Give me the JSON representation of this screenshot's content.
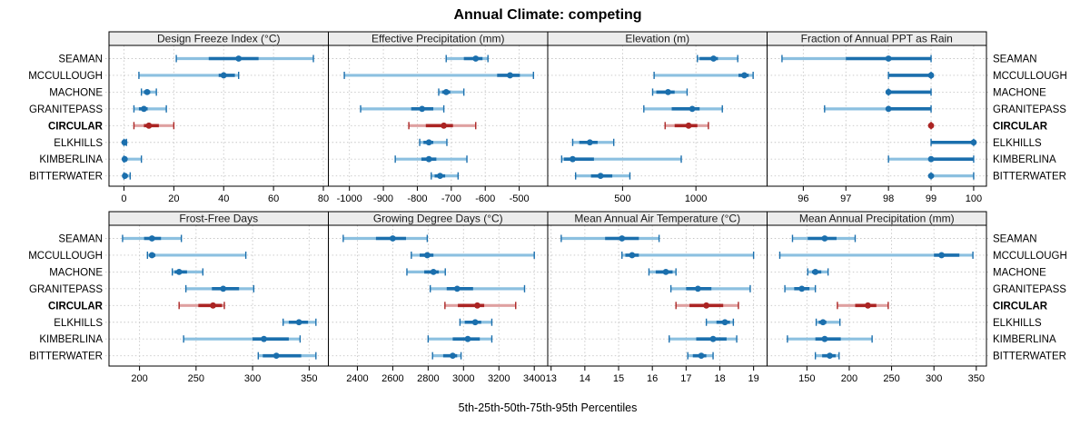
{
  "colors": {
    "blue_dark": "#1b6fad",
    "blue_band": "#8cc0e0",
    "red_dark": "#ab2423",
    "red_band": "#dfa1a1",
    "strip_bg": "#ececec",
    "grid": "#c6c6c6",
    "border": "#000000",
    "text": "#000000"
  },
  "chart_data": {
    "type": "dot-range percentile plot (2x4 lattice)",
    "title": "Annual Climate: competing",
    "caption": "5th-25th-50th-75th-95th Percentiles",
    "percentile_order": [
      "5th",
      "25th",
      "50th",
      "75th",
      "95th"
    ],
    "sites": [
      "SEAMAN",
      "MCCULLOUGH",
      "MACHONE",
      "GRANITEPASS",
      "CIRCULAR",
      "ELKHILLS",
      "KIMBERLINA",
      "BITTERWATER"
    ],
    "highlight_site": "CIRCULAR",
    "legend_position": "none",
    "grid": "dotted",
    "panels": [
      {
        "title": "Design Freeze Index (°C)",
        "xlim": [
          -6,
          82
        ],
        "ticks": [
          0,
          20,
          40,
          60,
          80
        ],
        "values": [
          [
            21,
            34,
            46,
            54,
            76
          ],
          [
            6,
            38,
            40,
            44.5,
            46
          ],
          [
            7,
            8,
            9.3,
            10.5,
            13
          ],
          [
            4,
            6,
            8,
            9.5,
            17
          ],
          [
            4,
            8,
            10,
            14,
            20
          ],
          [
            0,
            0,
            0.2,
            0.5,
            1
          ],
          [
            0,
            0,
            0.3,
            1,
            7
          ],
          [
            0,
            0,
            0.4,
            1,
            2.5
          ]
        ]
      },
      {
        "title": "Effective Precipitation (mm)",
        "xlim": [
          -1062,
          -416
        ],
        "ticks": [
          -1000,
          -900,
          -800,
          -700,
          -600,
          -500
        ],
        "values": [
          [
            -715,
            -663,
            -628,
            -608,
            -592
          ],
          [
            -1015,
            -565,
            -527,
            -498,
            -458
          ],
          [
            -737,
            -727,
            -715,
            -703,
            -663
          ],
          [
            -967,
            -818,
            -786,
            -753,
            -722
          ],
          [
            -825,
            -775,
            -722,
            -695,
            -628
          ],
          [
            -793,
            -782,
            -766,
            -753,
            -713
          ],
          [
            -865,
            -788,
            -766,
            -744,
            -654
          ],
          [
            -759,
            -749,
            -733,
            -718,
            -680
          ]
        ]
      },
      {
        "title": "Elevation (m)",
        "xlim": [
          -10,
          1485
        ],
        "ticks": [
          500,
          1000
        ],
        "values": [
          [
            1010,
            1025,
            1120,
            1150,
            1285
          ],
          [
            715,
            1290,
            1330,
            1360,
            1390
          ],
          [
            705,
            730,
            810,
            855,
            940
          ],
          [
            645,
            835,
            975,
            1025,
            1180
          ],
          [
            790,
            855,
            950,
            1010,
            1085
          ],
          [
            160,
            205,
            277,
            330,
            440
          ],
          [
            85,
            100,
            160,
            305,
            900
          ],
          [
            180,
            285,
            350,
            430,
            550
          ]
        ]
      },
      {
        "title": "Fraction of Annual PPT as Rain",
        "xlim": [
          95.15,
          100.3
        ],
        "ticks": [
          96,
          97,
          98,
          99,
          100
        ],
        "values": [
          [
            95.5,
            97,
            98,
            99,
            99
          ],
          [
            98,
            98,
            99,
            99,
            99
          ],
          [
            98,
            98,
            98,
            99,
            99
          ],
          [
            96.5,
            98,
            98,
            99,
            99
          ],
          [
            99,
            99,
            99,
            99,
            99
          ],
          [
            99,
            99,
            100,
            100,
            100
          ],
          [
            98,
            99,
            99,
            100,
            100
          ],
          [
            99,
            99,
            99,
            99,
            100
          ]
        ]
      },
      {
        "title": "Frost-Free Days",
        "xlim": [
          173,
          367
        ],
        "ticks": [
          200,
          250,
          300,
          350
        ],
        "values": [
          [
            185,
            204,
            211,
            219,
            237
          ],
          [
            207,
            209,
            211,
            214,
            294
          ],
          [
            229,
            231,
            235,
            242,
            256
          ],
          [
            241,
            264,
            274,
            288,
            301
          ],
          [
            235,
            252,
            265,
            273,
            275
          ],
          [
            327,
            332,
            341,
            349,
            356
          ],
          [
            239,
            300,
            310,
            332,
            342
          ],
          [
            305,
            309,
            321,
            343,
            356
          ]
        ]
      },
      {
        "title": "Growing Degree Days (°C)",
        "xlim": [
          2236,
          3476
        ],
        "ticks": [
          2400,
          2600,
          2800,
          3000,
          3200,
          3400
        ],
        "values": [
          [
            2320,
            2505,
            2600,
            2675,
            2795
          ],
          [
            2705,
            2752,
            2795,
            2830,
            3400
          ],
          [
            2680,
            2778,
            2830,
            2860,
            2897
          ],
          [
            2812,
            2905,
            2964,
            3054,
            3345
          ],
          [
            2895,
            2968,
            3078,
            3117,
            3295
          ],
          [
            2980,
            3007,
            3066,
            3100,
            3160
          ],
          [
            2800,
            2939,
            3024,
            3092,
            3160
          ],
          [
            2825,
            2885,
            2939,
            2964,
            2986
          ]
        ]
      },
      {
        "title": "Mean Annual Air Temperature (°C)",
        "xlim": [
          12.9,
          19.4
        ],
        "ticks": [
          13,
          14,
          15,
          16,
          17,
          18,
          19
        ],
        "values": [
          [
            13.3,
            14.6,
            15.1,
            15.6,
            16.2
          ],
          [
            15.1,
            15.2,
            15.4,
            15.6,
            19.0
          ],
          [
            15.9,
            16.1,
            16.4,
            16.6,
            16.7
          ],
          [
            16.55,
            17.0,
            17.35,
            17.75,
            18.9
          ],
          [
            16.7,
            17.1,
            17.6,
            18.1,
            18.55
          ],
          [
            17.6,
            17.9,
            18.15,
            18.3,
            18.4
          ],
          [
            16.5,
            17.3,
            17.8,
            18.2,
            18.5
          ],
          [
            17.05,
            17.2,
            17.45,
            17.6,
            17.8
          ]
        ]
      },
      {
        "title": "Mean Annual Precipitation (mm)",
        "xlim": [
          103,
          362
        ],
        "ticks": [
          150,
          200,
          250,
          300,
          350
        ],
        "values": [
          [
            133,
            151,
            171,
            185,
            207
          ],
          [
            118,
            300,
            309,
            330,
            346
          ],
          [
            151,
            156,
            160,
            167,
            175
          ],
          [
            124,
            135,
            144,
            153,
            160
          ],
          [
            186,
            207,
            222,
            232,
            246
          ],
          [
            161,
            164,
            169,
            173,
            189
          ],
          [
            127,
            160,
            171,
            190,
            227
          ],
          [
            160,
            168,
            177,
            184,
            188
          ]
        ]
      }
    ]
  }
}
